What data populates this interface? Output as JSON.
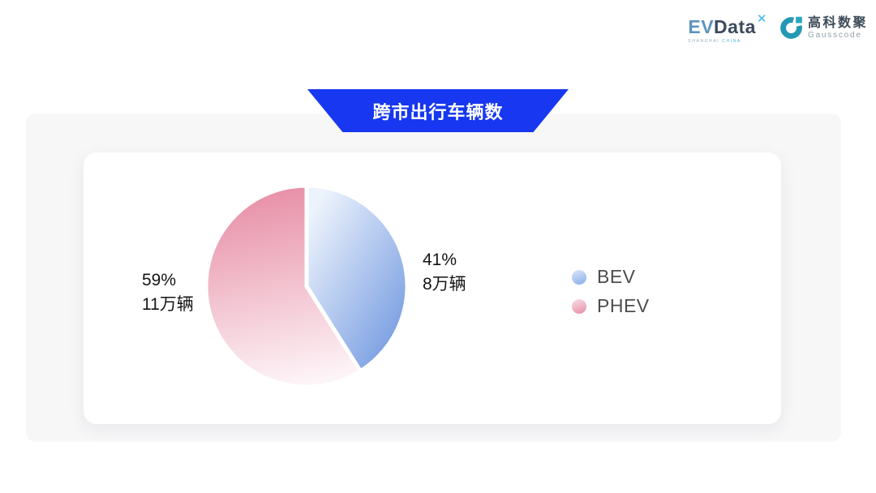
{
  "header": {
    "evdata": {
      "part1": "EV",
      "part2": "Data",
      "sup": "✕",
      "subtext1": "SHANGHAI",
      "subtext2": "CHINA"
    },
    "gausscode": {
      "name_cn": "高科数聚",
      "name_en": "Gausscode"
    }
  },
  "banner": {
    "title": "跨市出行车辆数"
  },
  "chart_data": {
    "type": "pie",
    "title": "跨市出行车辆数",
    "unit": "万辆",
    "legend_position": "right",
    "start_angle_deg": 0,
    "clockwise": true,
    "series": [
      {
        "name": "BEV",
        "percent": 41,
        "value": 8,
        "percent_label": "41%",
        "value_label": "8万辆",
        "gradient": {
          "start": "#edf3fc",
          "end": "#769ce1",
          "dir": "tl-br"
        },
        "dot": {
          "start": "#cfdef8",
          "end": "#8fb3ea"
        }
      },
      {
        "name": "PHEV",
        "percent": 59,
        "value": 11,
        "percent_label": "59%",
        "value_label": "11万辆",
        "gradient": {
          "start": "#e78da5",
          "end": "#fdf4f7",
          "dir": "t-b"
        },
        "dot": {
          "start": "#f7d3dd",
          "end": "#e795aa"
        }
      }
    ]
  },
  "colors": {
    "banner_blue": "#1737f0",
    "panel_bg": "#f7f7f8",
    "card_bg": "#ffffff",
    "label_text": "#141414",
    "legend_text": "#4d4d4d",
    "logo_teal": "#2398b4",
    "logo_teal2": "#2ba7c0",
    "logo_dark": "#3c4a57",
    "logo_gray": "#91a1aa",
    "pie_border": "#ffffff"
  }
}
